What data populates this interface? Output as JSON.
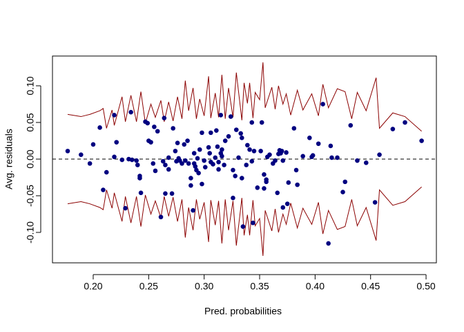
{
  "chart_data": {
    "type": "scatter",
    "xlabel": "Pred. probabilities",
    "ylabel": "Avg. residuals",
    "xlim": [
      0.1633,
      0.5093
    ],
    "ylim": [
      -0.1415,
      0.1406
    ],
    "xticks": [
      {
        "value": 0.2,
        "label": "0.20"
      },
      {
        "value": 0.25,
        "label": "0.25"
      },
      {
        "value": 0.3,
        "label": "0.30"
      },
      {
        "value": 0.35,
        "label": "0.35"
      },
      {
        "value": 0.4,
        "label": "0.40"
      },
      {
        "value": 0.45,
        "label": "0.45"
      },
      {
        "value": 0.5,
        "label": "0.50"
      }
    ],
    "yticks": [
      {
        "value": -0.1,
        "label": "-0.10"
      },
      {
        "value": -0.05,
        "label": "-0.05"
      },
      {
        "value": 0,
        "label": "0.00"
      },
      {
        "value": 0.05,
        "label": "0.05"
      },
      {
        "value": 0.1,
        "label": "0.10"
      }
    ],
    "hline": 0,
    "series": [
      {
        "mark": "line",
        "color": "#8b0000",
        "x": [
          0.177,
          0.189,
          0.197,
          0.206,
          0.209,
          0.212,
          0.217,
          0.219,
          0.226,
          0.229,
          0.234,
          0.239,
          0.243,
          0.247,
          0.252,
          0.256,
          0.261,
          0.264,
          0.268,
          0.272,
          0.276,
          0.28,
          0.283,
          0.286,
          0.29,
          0.293,
          0.296,
          0.3,
          0.304,
          0.306,
          0.31,
          0.313,
          0.316,
          0.319,
          0.322,
          0.326,
          0.329,
          0.334,
          0.336,
          0.339,
          0.341,
          0.344,
          0.346,
          0.35,
          0.353,
          0.355,
          0.361,
          0.364,
          0.367,
          0.371,
          0.374,
          0.378,
          0.384,
          0.389,
          0.397,
          0.403,
          0.407,
          0.412,
          0.42,
          0.427,
          0.433,
          0.438,
          0.446,
          0.455,
          0.458,
          0.47,
          0.481,
          0.496
        ],
        "values": [
          0.061,
          0.058,
          0.061,
          0.066,
          0.069,
          0.042,
          0.067,
          0.046,
          0.085,
          0.051,
          0.087,
          0.051,
          0.092,
          0.049,
          0.075,
          0.057,
          0.08,
          0.051,
          0.078,
          0.052,
          0.085,
          0.055,
          0.107,
          0.066,
          0.097,
          0.055,
          0.082,
          0.059,
          0.113,
          0.056,
          0.09,
          0.057,
          0.115,
          0.055,
          0.097,
          0.057,
          0.118,
          0.053,
          0.104,
          0.076,
          0.104,
          0.056,
          0.091,
          0.081,
          0.132,
          0.07,
          0.098,
          0.068,
          0.1,
          0.075,
          0.089,
          0.06,
          0.094,
          0.067,
          0.089,
          0.059,
          0.102,
          0.07,
          0.096,
          0.092,
          0.055,
          0.091,
          0.066,
          0.111,
          0.042,
          0.063,
          0.058,
          0.038
        ]
      },
      {
        "mark": "line",
        "color": "#8b0000",
        "x": [
          0.177,
          0.189,
          0.197,
          0.206,
          0.209,
          0.212,
          0.217,
          0.219,
          0.226,
          0.229,
          0.234,
          0.239,
          0.243,
          0.247,
          0.252,
          0.256,
          0.261,
          0.264,
          0.268,
          0.272,
          0.276,
          0.28,
          0.283,
          0.286,
          0.29,
          0.293,
          0.296,
          0.3,
          0.304,
          0.306,
          0.31,
          0.313,
          0.316,
          0.319,
          0.322,
          0.326,
          0.329,
          0.334,
          0.336,
          0.339,
          0.341,
          0.344,
          0.346,
          0.35,
          0.353,
          0.355,
          0.361,
          0.364,
          0.367,
          0.371,
          0.374,
          0.378,
          0.384,
          0.389,
          0.397,
          0.403,
          0.407,
          0.412,
          0.42,
          0.427,
          0.433,
          0.438,
          0.446,
          0.455,
          0.458,
          0.47,
          0.481,
          0.496
        ],
        "values": [
          -0.061,
          -0.058,
          -0.061,
          -0.066,
          -0.069,
          -0.042,
          -0.067,
          -0.046,
          -0.085,
          -0.051,
          -0.087,
          -0.051,
          -0.092,
          -0.049,
          -0.075,
          -0.057,
          -0.08,
          -0.051,
          -0.078,
          -0.052,
          -0.085,
          -0.055,
          -0.107,
          -0.066,
          -0.097,
          -0.055,
          -0.082,
          -0.059,
          -0.113,
          -0.056,
          -0.09,
          -0.057,
          -0.115,
          -0.055,
          -0.097,
          -0.057,
          -0.118,
          -0.053,
          -0.104,
          -0.076,
          -0.104,
          -0.056,
          -0.091,
          -0.081,
          -0.132,
          -0.07,
          -0.098,
          -0.068,
          -0.1,
          -0.075,
          -0.089,
          -0.06,
          -0.094,
          -0.067,
          -0.089,
          -0.059,
          -0.102,
          -0.07,
          -0.096,
          -0.092,
          -0.055,
          -0.091,
          -0.066,
          -0.111,
          -0.042,
          -0.063,
          -0.058,
          -0.038
        ]
      },
      {
        "mark": "point",
        "color": "#000080",
        "x": [
          0.177,
          0.189,
          0.197,
          0.2,
          0.206,
          0.209,
          0.212,
          0.219,
          0.219,
          0.221,
          0.226,
          0.229,
          0.232,
          0.234,
          0.235,
          0.239,
          0.24,
          0.242,
          0.242,
          0.243,
          0.247,
          0.249,
          0.25,
          0.252,
          0.254,
          0.255,
          0.256,
          0.258,
          0.261,
          0.263,
          0.264,
          0.265,
          0.265,
          0.268,
          0.268,
          0.271,
          0.272,
          0.274,
          0.275,
          0.276,
          0.277,
          0.278,
          0.28,
          0.282,
          0.283,
          0.285,
          0.286,
          0.288,
          0.288,
          0.29,
          0.291,
          0.291,
          0.292,
          0.293,
          0.294,
          0.295,
          0.296,
          0.298,
          0.298,
          0.3,
          0.301,
          0.304,
          0.305,
          0.306,
          0.306,
          0.308,
          0.31,
          0.311,
          0.312,
          0.313,
          0.313,
          0.315,
          0.315,
          0.316,
          0.316,
          0.318,
          0.319,
          0.322,
          0.324,
          0.326,
          0.326,
          0.328,
          0.329,
          0.331,
          0.333,
          0.334,
          0.334,
          0.335,
          0.338,
          0.339,
          0.341,
          0.343,
          0.343,
          0.344,
          0.345,
          0.348,
          0.351,
          0.352,
          0.354,
          0.354,
          0.356,
          0.356,
          0.357,
          0.359,
          0.362,
          0.364,
          0.366,
          0.367,
          0.368,
          0.369,
          0.37,
          0.371,
          0.371,
          0.374,
          0.375,
          0.376,
          0.381,
          0.383,
          0.384,
          0.389,
          0.395,
          0.397,
          0.398,
          0.403,
          0.407,
          0.412,
          0.414,
          0.415,
          0.42,
          0.425,
          0.427,
          0.432,
          0.438,
          0.446,
          0.454,
          0.458,
          0.47,
          0.481,
          0.496
        ],
        "values": [
          0.011,
          0.006,
          -0.006,
          0.02,
          0.043,
          -0.042,
          -0.018,
          0.06,
          0.003,
          0.023,
          -0.001,
          -0.067,
          0.0,
          0.064,
          -0.001,
          -0.002,
          -0.008,
          -0.023,
          -0.026,
          -0.046,
          0.051,
          0.049,
          0.025,
          0.023,
          -0.006,
          0.044,
          -0.016,
          0.038,
          -0.079,
          -0.003,
          0.056,
          -0.047,
          -0.008,
          0.002,
          -0.014,
          -0.047,
          0.042,
          0.011,
          -0.003,
          0.022,
          0.001,
          -0.002,
          -0.006,
          0.02,
          -0.002,
          0.025,
          -0.006,
          -0.036,
          -0.026,
          -0.07,
          0.008,
          -0.006,
          -0.01,
          -0.015,
          0.001,
          -0.019,
          0.013,
          0.036,
          -0.034,
          -0.002,
          -0.011,
          0.016,
          0.008,
          0.036,
          -0.004,
          -0.007,
          0.002,
          0.039,
          0.017,
          -0.004,
          -0.014,
          0.008,
          0.06,
          0.013,
          0.004,
          -0.008,
          0.025,
          0.031,
          0.058,
          -0.015,
          -0.053,
          -0.023,
          0.04,
          0.002,
          0.035,
          -0.026,
          0.029,
          -0.092,
          -0.008,
          0.019,
          0.013,
          0.05,
          -0.003,
          -0.087,
          0.011,
          -0.039,
          0.011,
          0.05,
          -0.04,
          -0.021,
          -0.028,
          -0.031,
          0.003,
          0.006,
          -0.006,
          -0.002,
          -0.046,
          0.007,
          0.012,
          0.008,
          0.011,
          -0.066,
          -0.002,
          0.009,
          -0.061,
          -0.032,
          0.042,
          -0.015,
          -0.035,
          0.004,
          0.029,
          0.003,
          0.005,
          0.021,
          0.075,
          -0.115,
          0.018,
          0.002,
          0.002,
          -0.045,
          -0.031,
          0.046,
          -0.002,
          -0.005,
          -0.059,
          0.006,
          0.041,
          0.05,
          0.025
        ]
      }
    ]
  }
}
